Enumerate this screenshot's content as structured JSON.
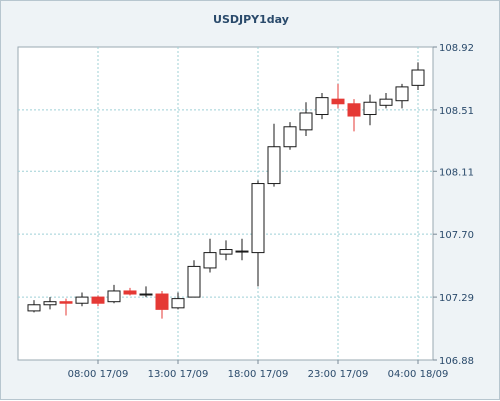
{
  "chart_data": {
    "type": "candlestick",
    "title": "USDJPY1day",
    "xlabel": "",
    "ylabel": "",
    "ylim": [
      106.88,
      108.92
    ],
    "yticks": [
      "108.92",
      "108.51",
      "108.11",
      "107.70",
      "107.29",
      "106.88"
    ],
    "xticks": [
      {
        "label": "08:00 17/09",
        "index": 4
      },
      {
        "label": "13:00 17/09",
        "index": 9
      },
      {
        "label": "18:00 17/09",
        "index": 14
      },
      {
        "label": "23:00 17/09",
        "index": 19
      },
      {
        "label": "04:00 18/09",
        "index": 24
      }
    ],
    "grid": true,
    "up_color": "#ffffff",
    "down_color": "#e53935",
    "candles": [
      {
        "open": 107.2,
        "close": 107.24,
        "high": 107.27,
        "low": 107.19
      },
      {
        "open": 107.24,
        "close": 107.26,
        "high": 107.29,
        "low": 107.21
      },
      {
        "open": 107.26,
        "close": 107.25,
        "high": 107.28,
        "low": 107.17
      },
      {
        "open": 107.25,
        "close": 107.29,
        "high": 107.32,
        "low": 107.23
      },
      {
        "open": 107.29,
        "close": 107.25,
        "high": 107.3,
        "low": 107.23
      },
      {
        "open": 107.26,
        "close": 107.33,
        "high": 107.37,
        "low": 107.25
      },
      {
        "open": 107.33,
        "close": 107.31,
        "high": 107.35,
        "low": 107.3
      },
      {
        "open": 107.31,
        "close": 107.31,
        "high": 107.36,
        "low": 107.29
      },
      {
        "open": 107.31,
        "close": 107.21,
        "high": 107.33,
        "low": 107.15
      },
      {
        "open": 107.22,
        "close": 107.28,
        "high": 107.32,
        "low": 107.21
      },
      {
        "open": 107.29,
        "close": 107.49,
        "high": 107.53,
        "low": 107.29
      },
      {
        "open": 107.48,
        "close": 107.58,
        "high": 107.67,
        "low": 107.45
      },
      {
        "open": 107.57,
        "close": 107.6,
        "high": 107.66,
        "low": 107.53
      },
      {
        "open": 107.59,
        "close": 107.59,
        "high": 107.67,
        "low": 107.53
      },
      {
        "open": 107.58,
        "close": 108.03,
        "high": 108.05,
        "low": 107.36
      },
      {
        "open": 108.03,
        "close": 108.27,
        "high": 108.42,
        "low": 108.01
      },
      {
        "open": 108.27,
        "close": 108.4,
        "high": 108.43,
        "low": 108.25
      },
      {
        "open": 108.38,
        "close": 108.49,
        "high": 108.56,
        "low": 108.34
      },
      {
        "open": 108.48,
        "close": 108.59,
        "high": 108.62,
        "low": 108.45
      },
      {
        "open": 108.58,
        "close": 108.55,
        "high": 108.68,
        "low": 108.52
      },
      {
        "open": 108.55,
        "close": 108.47,
        "high": 108.58,
        "low": 108.37
      },
      {
        "open": 108.48,
        "close": 108.56,
        "high": 108.61,
        "low": 108.41
      },
      {
        "open": 108.54,
        "close": 108.58,
        "high": 108.62,
        "low": 108.52
      },
      {
        "open": 108.57,
        "close": 108.66,
        "high": 108.68,
        "low": 108.52
      },
      {
        "open": 108.67,
        "close": 108.77,
        "high": 108.82,
        "low": 108.64
      }
    ]
  }
}
